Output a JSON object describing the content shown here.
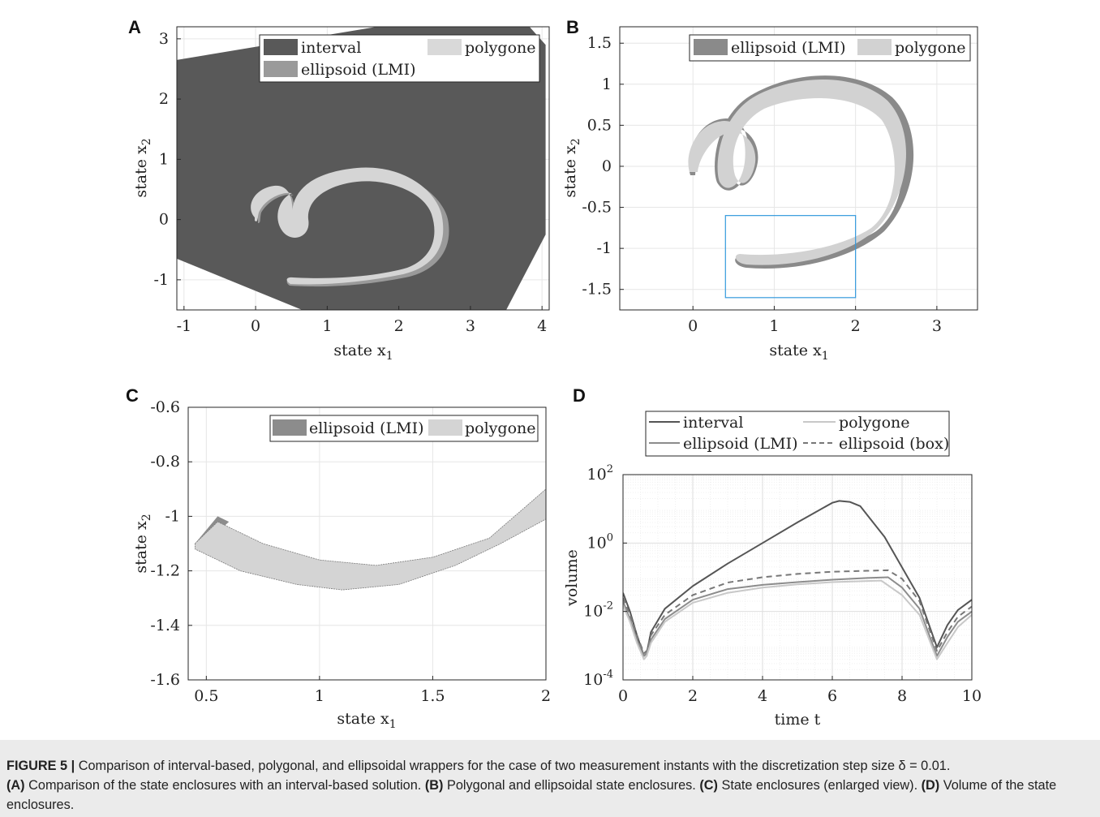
{
  "chart_data": [
    {
      "panel": "A",
      "type": "area",
      "xlabel": "state x",
      "xlabel_sub": "1",
      "ylabel": "state x",
      "ylabel_sub": "2",
      "xlim": [
        -1.1,
        4.1
      ],
      "ylim": [
        -1.5,
        3.2
      ],
      "xticks": [
        "-1",
        "0",
        "1",
        "2",
        "3",
        "4"
      ],
      "yticks": [
        "-1",
        "0",
        "1",
        "2",
        "3"
      ],
      "legend": [
        "interval",
        "polygone",
        "ellipsoid (LMI)"
      ],
      "legend_position": "top-right",
      "colors": {
        "interval": "#595959",
        "polygone": "#d9d9d9",
        "ellipsoid": "#9a9a9a"
      },
      "series": [
        {
          "name": "interval",
          "points": [
            [
              -1.1,
              2.65
            ],
            [
              2.2,
              3.3
            ],
            [
              3.75,
              3.3
            ],
            [
              4.05,
              2.9
            ],
            [
              4.05,
              -0.25
            ],
            [
              3.5,
              -1.5
            ],
            [
              0.65,
              -1.5
            ],
            [
              -1.1,
              -0.65
            ]
          ]
        }
      ]
    },
    {
      "panel": "B",
      "type": "area",
      "xlabel": "state x",
      "xlabel_sub": "1",
      "ylabel": "state x",
      "ylabel_sub": "2",
      "xlim": [
        -0.9,
        3.5
      ],
      "ylim": [
        -1.75,
        1.7
      ],
      "xticks": [
        "0",
        "1",
        "2",
        "3"
      ],
      "yticks": [
        "1.5",
        "1",
        "0.5",
        "0",
        "-0.5",
        "-1",
        "-1.5"
      ],
      "legend": [
        "ellipsoid (LMI)",
        "polygone"
      ],
      "legend_position": "top",
      "zoom_box": {
        "x": [
          0.4,
          2.0
        ],
        "y": [
          -1.6,
          -0.6
        ],
        "color": "#3399dd"
      }
    },
    {
      "panel": "C",
      "type": "area",
      "xlabel": "state x",
      "xlabel_sub": "1",
      "ylabel": "state x",
      "ylabel_sub": "2",
      "xlim": [
        0.42,
        2.0
      ],
      "ylim": [
        -1.6,
        -0.6
      ],
      "xticks": [
        "0.5",
        "1",
        "1.5",
        "2"
      ],
      "yticks": [
        "-0.6",
        "-0.8",
        "-1",
        "-1.2",
        "-1.4",
        "-1.6"
      ],
      "legend": [
        "ellipsoid (LMI)",
        "polygone"
      ],
      "legend_position": "top-right",
      "series": [
        {
          "name": "upper boundary",
          "points": [
            [
              0.45,
              -1.1
            ],
            [
              0.55,
              -1.02
            ],
            [
              0.75,
              -1.1
            ],
            [
              1.0,
              -1.16
            ],
            [
              1.25,
              -1.18
            ],
            [
              1.5,
              -1.15
            ],
            [
              1.75,
              -1.08
            ],
            [
              2.0,
              -0.9
            ]
          ]
        },
        {
          "name": "lower boundary",
          "points": [
            [
              0.45,
              -1.12
            ],
            [
              0.65,
              -1.2
            ],
            [
              0.9,
              -1.25
            ],
            [
              1.1,
              -1.27
            ],
            [
              1.35,
              -1.25
            ],
            [
              1.6,
              -1.18
            ],
            [
              1.8,
              -1.1
            ],
            [
              2.0,
              -1.01
            ]
          ]
        }
      ]
    },
    {
      "panel": "D",
      "type": "line",
      "xlabel": "time t",
      "ylabel": "volume",
      "xlim": [
        0,
        10
      ],
      "ylim_log10": [
        -4,
        2
      ],
      "log_y": true,
      "grid": true,
      "xticks": [
        "0",
        "2",
        "4",
        "6",
        "8",
        "10"
      ],
      "yticks": [
        {
          "base": "10",
          "exp": "2"
        },
        {
          "base": "10",
          "exp": "0"
        },
        {
          "base": "10",
          "exp": "-2"
        },
        {
          "base": "10",
          "exp": "-4"
        }
      ],
      "legend": [
        "interval",
        "polygone",
        "ellipsoid (LMI)",
        "ellipsoid (box)"
      ],
      "legend_position": "top",
      "series": [
        {
          "name": "interval",
          "color": "#555555",
          "dash": false,
          "x": [
            0,
            0.2,
            0.4,
            0.6,
            0.68,
            0.8,
            1.2,
            2,
            3,
            4,
            5,
            6,
            6.2,
            6.5,
            6.8,
            7.5,
            8.5,
            9,
            9.3,
            9.6,
            10
          ],
          "y": [
            0.035,
            0.01,
            0.002,
            0.0005,
            0.0006,
            0.0025,
            0.012,
            0.055,
            0.25,
            1.0,
            4.0,
            15.0,
            17.0,
            16.0,
            12.0,
            1.5,
            0.025,
            0.0009,
            0.004,
            0.011,
            0.022
          ]
        },
        {
          "name": "ellipsoid (box)",
          "color": "#777777",
          "dash": true,
          "x": [
            0,
            0.2,
            0.4,
            0.6,
            0.68,
            0.8,
            1.2,
            2,
            3,
            4,
            5,
            6,
            7,
            7.6,
            8,
            8.5,
            9,
            9.3,
            9.6,
            10
          ],
          "y": [
            0.025,
            0.008,
            0.002,
            0.0006,
            0.0007,
            0.002,
            0.008,
            0.03,
            0.07,
            0.1,
            0.125,
            0.145,
            0.155,
            0.16,
            0.09,
            0.02,
            0.0007,
            0.0025,
            0.007,
            0.014
          ]
        },
        {
          "name": "ellipsoid (LMI)",
          "color": "#8c8c8c",
          "dash": false,
          "x": [
            0,
            0.2,
            0.4,
            0.6,
            0.68,
            0.8,
            1.2,
            2,
            3,
            4,
            5,
            6,
            7,
            7.6,
            8,
            8.5,
            9,
            9.3,
            9.6,
            10
          ],
          "y": [
            0.02,
            0.006,
            0.0015,
            0.0005,
            0.0006,
            0.0015,
            0.006,
            0.022,
            0.045,
            0.06,
            0.072,
            0.085,
            0.095,
            0.1,
            0.05,
            0.012,
            0.0005,
            0.0018,
            0.005,
            0.01
          ]
        },
        {
          "name": "polygone",
          "color": "#c8c8c8",
          "dash": false,
          "x": [
            0,
            0.2,
            0.4,
            0.6,
            0.68,
            0.8,
            1.2,
            2,
            3,
            4,
            5,
            6,
            7,
            7.4,
            8,
            8.5,
            9,
            9.3,
            9.6,
            10
          ],
          "y": [
            0.015,
            0.005,
            0.0012,
            0.0004,
            0.0005,
            0.0012,
            0.005,
            0.018,
            0.035,
            0.05,
            0.062,
            0.072,
            0.078,
            0.08,
            0.03,
            0.008,
            0.0004,
            0.0012,
            0.0035,
            0.008
          ]
        }
      ]
    }
  ],
  "caption": {
    "label": "FIGURE 5 |",
    "text": " Comparison of interval-based, polygonal, and ellipsoidal wrappers for the case of two measurement instants with the discretization step size δ = 0.01.",
    "parts": [
      {
        "label": "(A)",
        "text": " Comparison of the state enclosures with an interval-based solution. "
      },
      {
        "label": "(B)",
        "text": " Polygonal and ellipsoidal state enclosures. "
      },
      {
        "label": "(C)",
        "text": " State enclosures (enlarged view). "
      },
      {
        "label": "(D)",
        "text": " Volume of the state enclosures."
      }
    ]
  }
}
